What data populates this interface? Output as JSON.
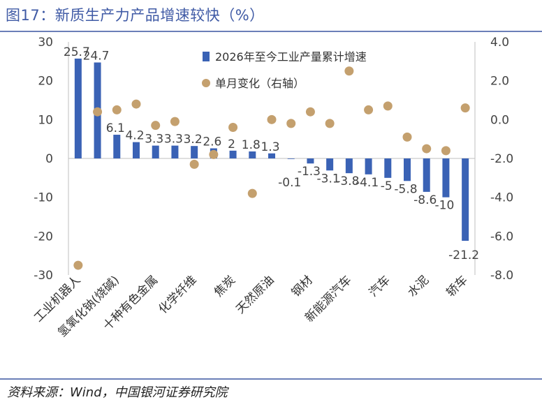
{
  "title": "图17：新质生产力产品增速较快（%）",
  "source": "资料来源：Wind，中国银河证券研究院",
  "colors": {
    "bar": "#3a62b5",
    "dot": "#c4a06e",
    "rule": "#6b7fb8",
    "title": "#3f5aa5"
  },
  "chart_data": {
    "type": "bar",
    "title": "图17：新质生产力产品增速较快（%）",
    "categories": [
      "工业机器人",
      "",
      "氢氧化钠(烧碱)",
      "",
      "十种有色金属",
      "",
      "化学纤维",
      "",
      "焦炭",
      "",
      "天然原油",
      "",
      "钢材",
      "",
      "新能源汽车",
      "",
      "汽车",
      "",
      "水泥",
      "",
      "轿车"
    ],
    "series": [
      {
        "name": "2026年至今工业产量累计增速",
        "axis": "left",
        "kind": "bar",
        "values": [
          25.7,
          24.7,
          6.1,
          4.2,
          3.3,
          3.3,
          3.2,
          2.6,
          2,
          1.8,
          1.3,
          -0.1,
          -1.3,
          -3.1,
          -3.8,
          -4.1,
          -5,
          -5.8,
          -8.6,
          -10,
          -21.2
        ],
        "labels": [
          "25.7",
          "24.7",
          "6.1",
          "4.2",
          "3.3",
          "3.3",
          "3.2",
          "2.6",
          "2",
          "1.8",
          "1.3",
          "-0.1",
          "-1.3",
          "-3.1",
          "-3.8",
          "-4.1",
          "-5",
          "-5.8",
          "-8.6",
          "-10",
          "-21.2"
        ]
      },
      {
        "name": "单月变化（右轴）",
        "axis": "right",
        "kind": "scatter",
        "values": [
          -7.5,
          0.4,
          0.5,
          0.8,
          -0.3,
          -0.1,
          -2.3,
          -1.8,
          -0.4,
          -3.8,
          0.0,
          -0.2,
          0.4,
          -0.2,
          2.5,
          0.5,
          0.7,
          -0.9,
          -1.5,
          -1.6,
          0.6
        ]
      }
    ],
    "left_axis": {
      "min": -30,
      "max": 30,
      "ticks": [
        "30",
        "20",
        "10",
        "0",
        "-10",
        "-20",
        "-30"
      ]
    },
    "right_axis": {
      "min": -8,
      "max": 4,
      "ticks": [
        "4.0",
        "2.0",
        "0.0",
        "-2.0",
        "-4.0",
        "-6.0",
        "-8.0"
      ]
    },
    "grid": false,
    "legend_position": "top-center"
  }
}
